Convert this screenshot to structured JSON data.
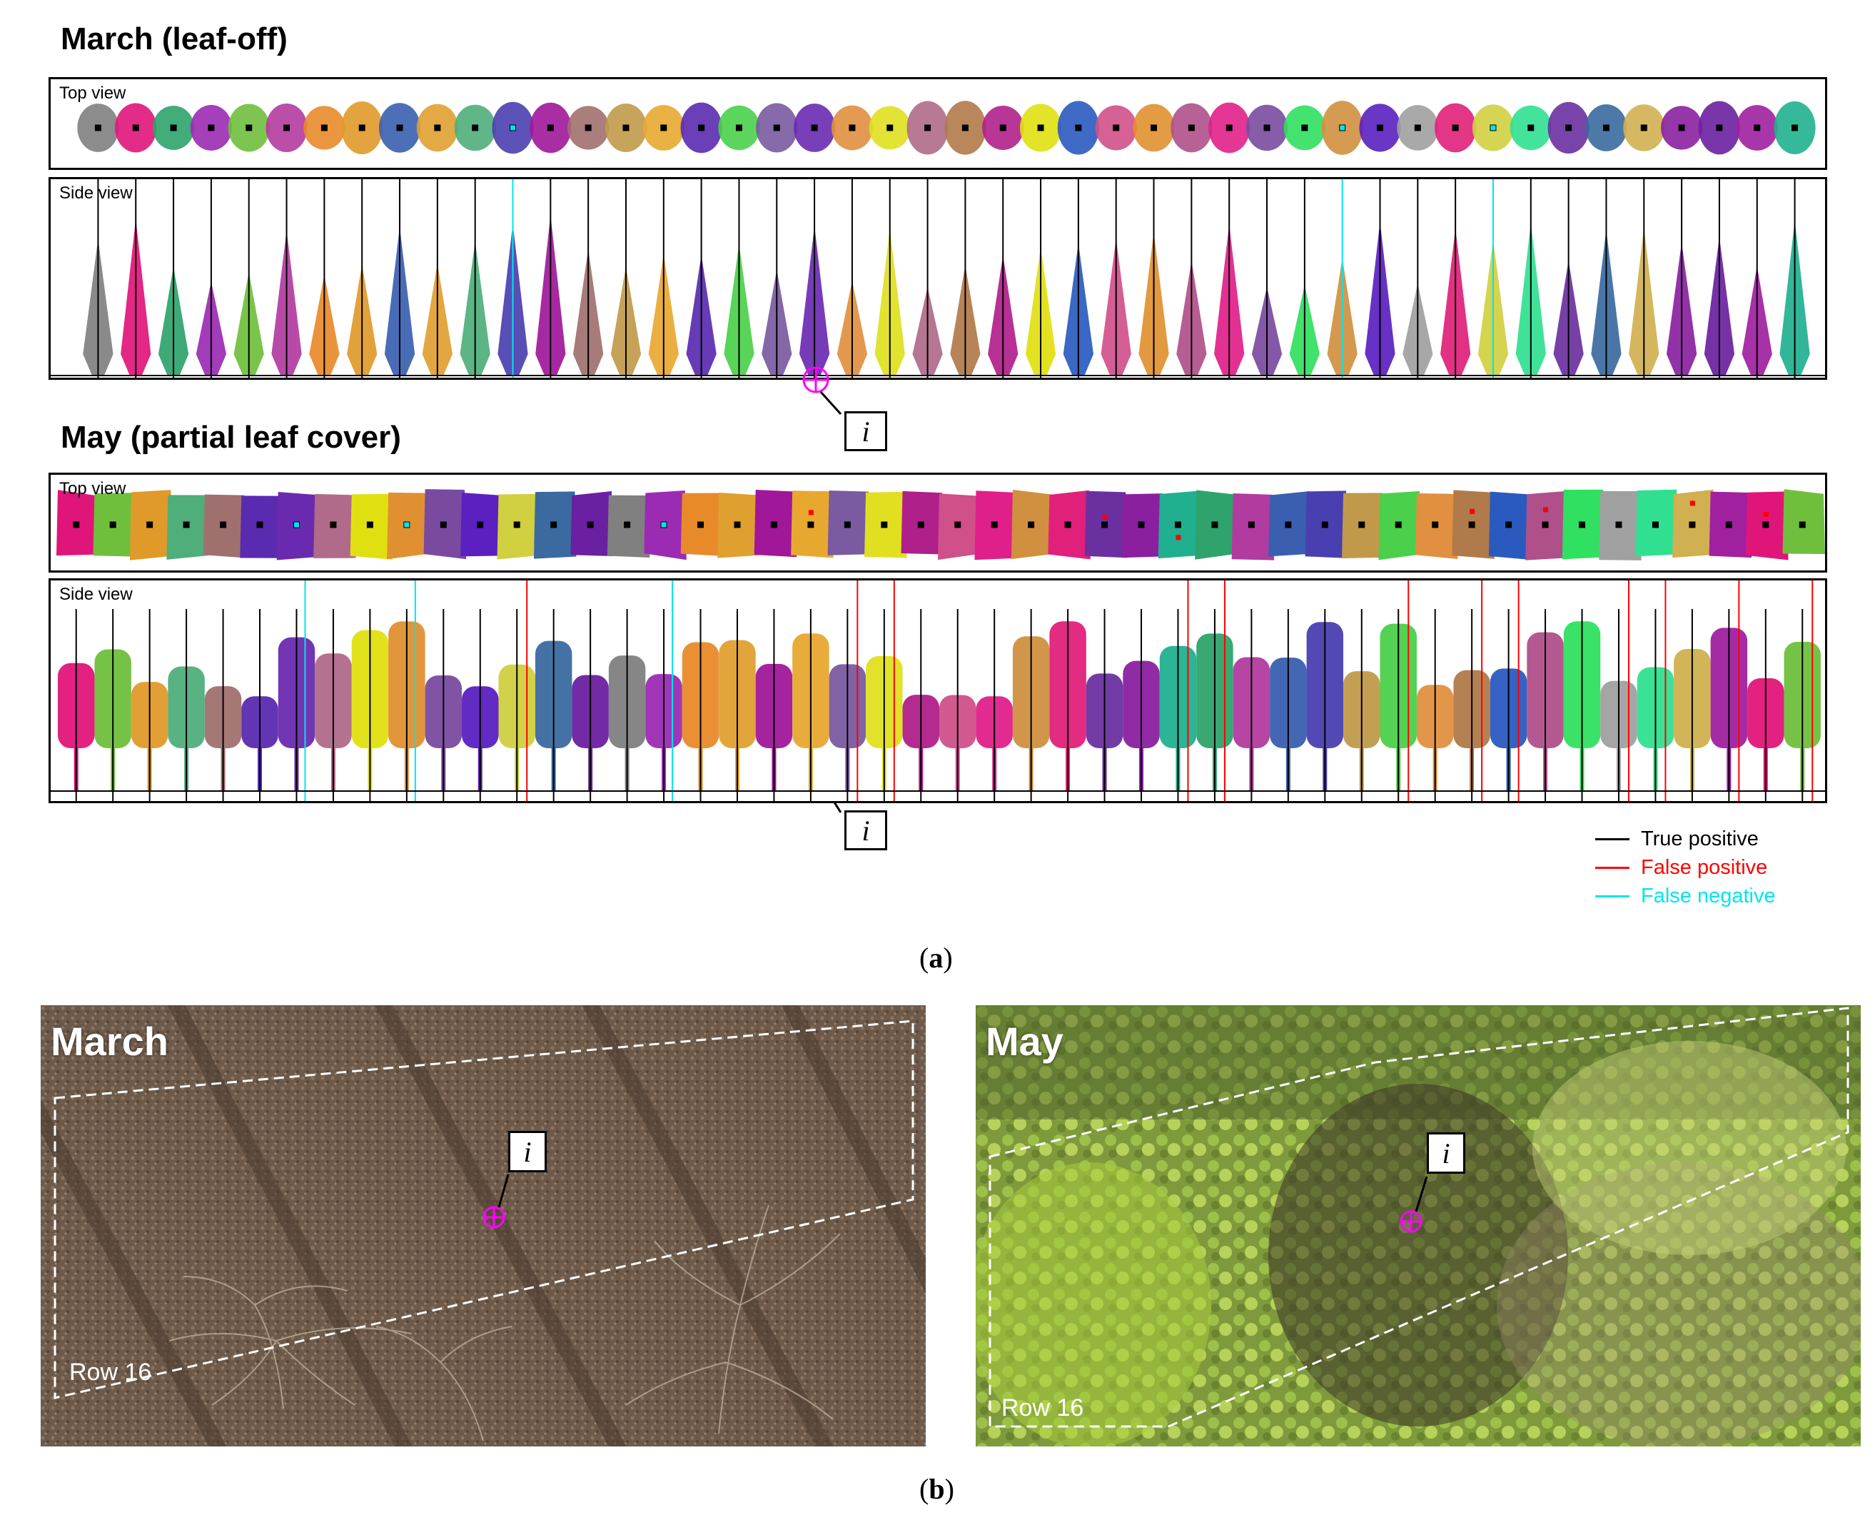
{
  "figure": {
    "march_heading": "March (leaf-off)",
    "may_heading": "May (partial leaf cover)",
    "top_view_label": "Top view",
    "side_view_label": "Side view",
    "callout_label": "i",
    "sublabel_a": "(a)",
    "sublabel_b": "(b)"
  },
  "legend": {
    "items": [
      {
        "label": "True positive",
        "color": "#000000"
      },
      {
        "label": "False positive",
        "color": "#ff0000"
      },
      {
        "label": "False negative",
        "color": "#00e5ee"
      }
    ]
  },
  "photos": {
    "march": {
      "title": "March",
      "row_label": "Row 16"
    },
    "may": {
      "title": "May",
      "row_label": "Row 16"
    }
  },
  "colors": {
    "true_positive": "#000000",
    "false_positive": "#ff0000",
    "false_negative": "#00e5ee",
    "marker": "#ff00ff",
    "tree_palette": [
      "#808080",
      "#e0157a",
      "#2ea36b",
      "#9b2bb3",
      "#6fbf3d",
      "#b23b9f",
      "#e88a2a",
      "#e09a2a",
      "#3a5fb0",
      "#e0a030",
      "#4fae7a",
      "#4a3fb0",
      "#a0179a",
      "#a0706e",
      "#c09a4a",
      "#e8a830",
      "#5a2ab0",
      "#4ad04a",
      "#7a5aa0",
      "#6a2ab0",
      "#e09040",
      "#e0e020",
      "#b06a8a",
      "#b07a4a",
      "#b0208a",
      "#e0e010",
      "#2a5ac0",
      "#d0508a",
      "#e09030",
      "#b0508a",
      "#e0208a",
      "#7a4aa0",
      "#30e060",
      "#d09040",
      "#5a20c0",
      "#a0a0a0",
      "#e0207a",
      "#d0d040",
      "#30e090",
      "#6a30a0",
      "#3a6aa0",
      "#d0b050",
      "#8a20a0",
      "#6a20a0",
      "#a020a0",
      "#20b090"
    ]
  }
}
